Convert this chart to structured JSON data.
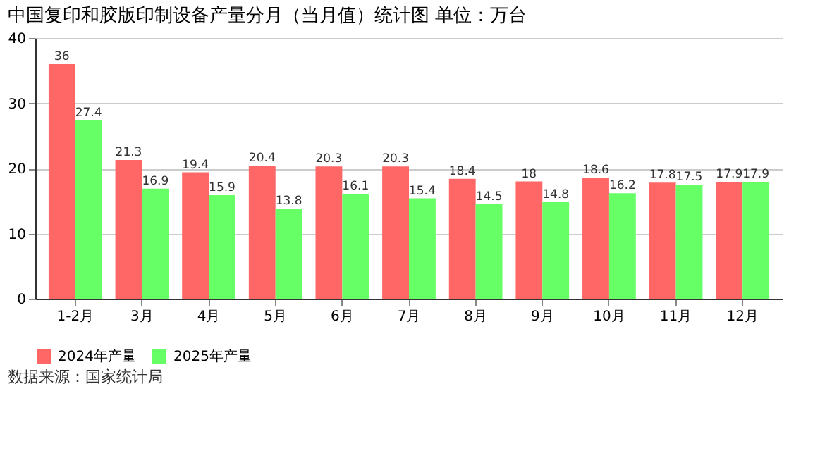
{
  "chart_data": {
    "type": "bar",
    "title": "中国复印和胶版印制设备产量分月（当月值）统计图  单位：万台",
    "categories": [
      "1-2月",
      "3月",
      "4月",
      "5月",
      "6月",
      "7月",
      "8月",
      "9月",
      "10月",
      "11月",
      "12月"
    ],
    "series": [
      {
        "name": "2024年产量",
        "color": "#ff6666",
        "values": [
          36,
          21.3,
          19.4,
          20.4,
          20.3,
          20.3,
          18.4,
          18,
          18.6,
          17.8,
          17.9
        ]
      },
      {
        "name": "2025年产量",
        "color": "#66ff66",
        "values": [
          27.4,
          16.9,
          15.9,
          13.8,
          16.1,
          15.4,
          14.5,
          14.8,
          16.2,
          17.5,
          17.9
        ]
      }
    ],
    "ylim": [
      0,
      40
    ],
    "yticks": [
      0,
      10,
      20,
      30,
      40
    ],
    "grid": "y",
    "legend": "bottom",
    "data_labels": true,
    "annotations": [
      "数据来源：国家统计局"
    ]
  }
}
